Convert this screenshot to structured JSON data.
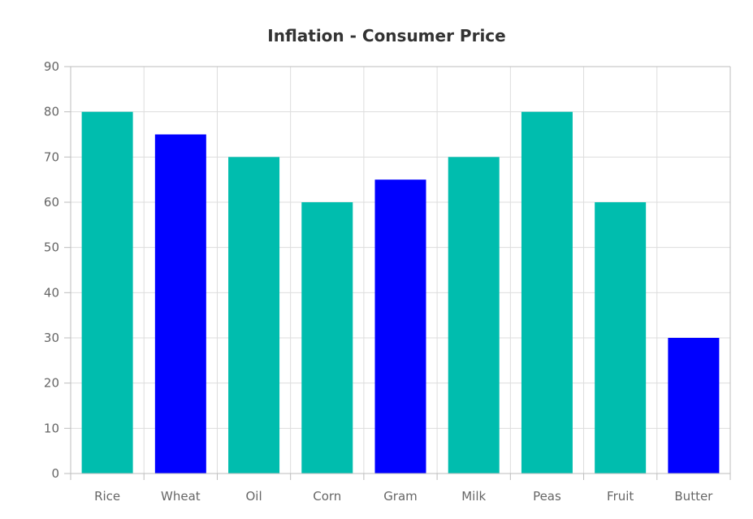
{
  "chart_data": {
    "type": "bar",
    "title": "Inflation - Consumer Price",
    "xlabel": "",
    "ylabel": "",
    "categories": [
      "Rice",
      "Wheat",
      "Oil",
      "Corn",
      "Gram",
      "Milk",
      "Peas",
      "Fruit",
      "Butter"
    ],
    "values": [
      80,
      75,
      70,
      60,
      65,
      70,
      80,
      60,
      30
    ],
    "bar_colors": [
      "#00bdae",
      "#0000ff",
      "#00bdae",
      "#00bdae",
      "#0000ff",
      "#00bdae",
      "#00bdae",
      "#00bdae",
      "#0000ff"
    ],
    "ylim": [
      0,
      90
    ],
    "yticks": [
      0,
      10,
      20,
      30,
      40,
      50,
      60,
      70,
      80,
      90
    ],
    "grid": true,
    "legend": "none"
  }
}
